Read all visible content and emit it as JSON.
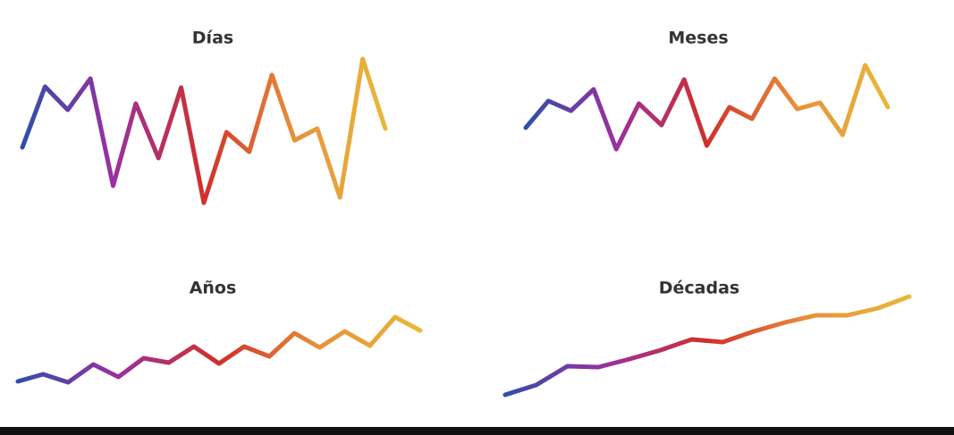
{
  "chart_data": [
    {
      "type": "line",
      "title": "Días",
      "colors": [
        "#2f4fa8",
        "#9b2fa0",
        "#d0302a",
        "#e8903a",
        "#e8b83a"
      ],
      "values": [
        85,
        153,
        127,
        162,
        42,
        134,
        73,
        152,
        23,
        102,
        80,
        166,
        93,
        106,
        29,
        184,
        106
      ]
    },
    {
      "type": "line",
      "title": "Meses",
      "colors": [
        "#2f4fa8",
        "#9b2fa0",
        "#d0302a",
        "#e8903a",
        "#e8b83a"
      ],
      "values": [
        107,
        137,
        126,
        150,
        83,
        134,
        110,
        161,
        87,
        130,
        117,
        162,
        128,
        135,
        99,
        177,
        130
      ]
    },
    {
      "type": "line",
      "title": "Años",
      "colors": [
        "#2f4fa8",
        "#9b2fa0",
        "#d0302a",
        "#e8903a",
        "#e8b83a"
      ],
      "values": [
        23,
        31,
        22,
        42,
        28,
        49,
        44,
        62,
        43,
        62,
        51,
        77,
        61,
        79,
        63,
        95,
        80
      ]
    },
    {
      "type": "line",
      "title": "Décadas",
      "colors": [
        "#2f4fa8",
        "#9b2fa0",
        "#d0302a",
        "#e8903a",
        "#e8b83a"
      ],
      "values": [
        8,
        19,
        40,
        39,
        48,
        58,
        70,
        67,
        79,
        89,
        97,
        97,
        105,
        118
      ]
    }
  ]
}
